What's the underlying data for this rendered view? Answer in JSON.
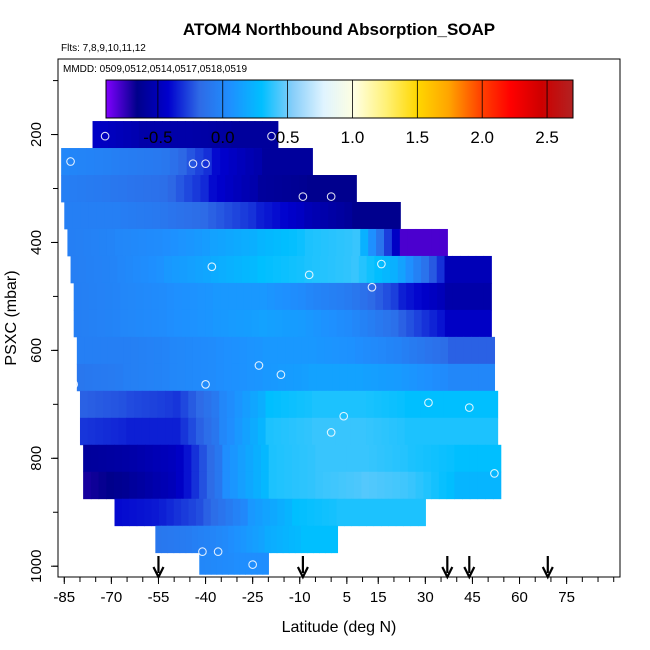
{
  "chart_data": {
    "type": "heatmap",
    "title": "ATOM4 Northbound Absorption_SOAP",
    "subtitle_flights": "Flts: 7,8,9,10,11,12",
    "subtitle_dates": "MMDD: 0509,0512,0514,0517,0518,0519",
    "xlabel": "Latitude (deg N)",
    "ylabel": "PSXC (mbar)",
    "xlim": [
      -87,
      92
    ],
    "ylim": [
      1020,
      60
    ],
    "x_ticks": [
      -85,
      -70,
      -55,
      -40,
      -25,
      -10,
      5,
      15,
      30,
      45,
      60,
      75
    ],
    "x_minor_step": 5,
    "y_ticks": [
      200,
      400,
      600,
      800,
      1000
    ],
    "colorbar": {
      "min": -0.9,
      "max": 2.7,
      "ticks": [
        -0.5,
        0.0,
        0.5,
        1.0,
        1.5,
        2.0,
        2.5
      ],
      "tick_labels": [
        "-0.5",
        "0.0",
        "0.5",
        "1.0",
        "1.5",
        "2.0",
        "2.5"
      ],
      "colors": [
        "#8000ff",
        "#00008b",
        "#0000cd",
        "#2e6ae6",
        "#1e90ff",
        "#00bfff",
        "#87cefa",
        "#e0f4ff",
        "#ffffe0",
        "#fff176",
        "#ffd700",
        "#ffa500",
        "#ff4500",
        "#ff0000",
        "#cd0000",
        "#b22222"
      ]
    },
    "rows": [
      {
        "p_top": 175,
        "p_bot": 225,
        "x_left": -76,
        "x_right": -17,
        "values": [
          -0.45,
          -0.55,
          -0.55,
          -0.6
        ]
      },
      {
        "p_top": 225,
        "p_bot": 275,
        "x_left": -86,
        "x_right": -6,
        "values": [
          0.0,
          -0.05,
          -0.1,
          -0.4,
          -0.6
        ]
      },
      {
        "p_top": 275,
        "p_bot": 325,
        "x_left": -86,
        "x_right": 8,
        "values": [
          -0.05,
          -0.1,
          -0.15,
          -0.4,
          -0.6,
          -0.65
        ]
      },
      {
        "p_top": 325,
        "p_bot": 375,
        "x_left": -85,
        "x_right": 22,
        "values": [
          -0.05,
          -0.05,
          -0.1,
          -0.2,
          -0.35,
          -0.5,
          -0.65
        ]
      },
      {
        "p_top": 375,
        "p_bot": 425,
        "x_left": -84,
        "x_right": 37,
        "values": [
          -0.05,
          0.0,
          0.05,
          0.15,
          0.25,
          0.35,
          0.4,
          -0.8
        ]
      },
      {
        "p_top": 425,
        "p_bot": 475,
        "x_left": -83,
        "x_right": 51,
        "values": [
          -0.05,
          0.0,
          0.1,
          0.2,
          0.3,
          0.35,
          0.4,
          0.15,
          -0.5
        ]
      },
      {
        "p_top": 475,
        "p_bot": 525,
        "x_left": -82,
        "x_right": 51,
        "values": [
          -0.05,
          0.0,
          0.05,
          0.1,
          0.1,
          0.0,
          -0.1,
          -0.35,
          -0.55
        ]
      },
      {
        "p_top": 525,
        "p_bot": 575,
        "x_left": -82,
        "x_right": 51,
        "values": [
          -0.05,
          0.0,
          0.05,
          0.1,
          0.15,
          0.1,
          0.0,
          -0.2,
          -0.45
        ]
      },
      {
        "p_top": 575,
        "p_bot": 625,
        "x_left": -81,
        "x_right": 52,
        "values": [
          -0.05,
          -0.05,
          0.0,
          0.05,
          0.1,
          0.1,
          0.05,
          -0.05,
          -0.2
        ]
      },
      {
        "p_top": 625,
        "p_bot": 675,
        "x_left": -81,
        "x_right": 52,
        "values": [
          -0.1,
          -0.05,
          0.0,
          0.05,
          0.1,
          0.15,
          0.15,
          0.1,
          0.0
        ]
      },
      {
        "p_top": 675,
        "p_bot": 725,
        "x_left": -80,
        "x_right": 53,
        "values": [
          -0.2,
          -0.25,
          -0.3,
          0.0,
          0.3,
          0.35,
          0.35,
          0.3,
          0.3
        ]
      },
      {
        "p_top": 725,
        "p_bot": 775,
        "x_left": -80,
        "x_right": 53,
        "values": [
          -0.3,
          -0.35,
          -0.35,
          0.0,
          0.35,
          0.4,
          0.4,
          0.35,
          0.35
        ]
      },
      {
        "p_top": 775,
        "p_bot": 825,
        "x_left": -79,
        "x_right": 54,
        "values": [
          -0.6,
          -0.55,
          -0.45,
          0.05,
          0.35,
          0.4,
          0.4,
          0.35,
          0.3
        ]
      },
      {
        "p_top": 825,
        "p_bot": 875,
        "x_left": -79,
        "x_right": 54,
        "values": [
          -0.7,
          -0.6,
          -0.45,
          0.05,
          0.35,
          0.4,
          0.45,
          0.4,
          0.25
        ]
      },
      {
        "p_top": 875,
        "p_bot": 925,
        "x_left": -69,
        "x_right": 30,
        "values": [
          -0.4,
          -0.35,
          -0.2,
          0.1,
          0.3,
          0.35,
          0.35
        ]
      },
      {
        "p_top": 925,
        "p_bot": 975,
        "x_left": -56,
        "x_right": 2,
        "values": [
          -0.1,
          -0.05,
          0.05,
          0.2,
          0.3
        ]
      },
      {
        "p_top": 975,
        "p_bot": 1015,
        "x_left": -42,
        "x_right": -20,
        "values": [
          0.0,
          0.05
        ]
      }
    ],
    "samples": [
      [
        -86,
        215
      ],
      [
        -72,
        203
      ],
      [
        -19,
        203
      ],
      [
        -83,
        250
      ],
      [
        -44,
        254
      ],
      [
        -40,
        254
      ],
      [
        -9,
        315
      ],
      [
        0,
        315
      ],
      [
        -38,
        445
      ],
      [
        -7,
        460
      ],
      [
        16,
        440
      ],
      [
        13,
        483
      ],
      [
        55,
        438
      ],
      [
        -82,
        663
      ],
      [
        -40,
        663
      ],
      [
        -23,
        628
      ],
      [
        -16,
        645
      ],
      [
        31,
        697
      ],
      [
        44,
        706
      ],
      [
        4,
        722
      ],
      [
        0,
        752
      ],
      [
        -82,
        813
      ],
      [
        52,
        828
      ],
      [
        -41,
        973
      ],
      [
        -36,
        973
      ],
      [
        -25,
        997
      ]
    ],
    "arrows": [
      -55,
      -9,
      37,
      44,
      69
    ]
  }
}
